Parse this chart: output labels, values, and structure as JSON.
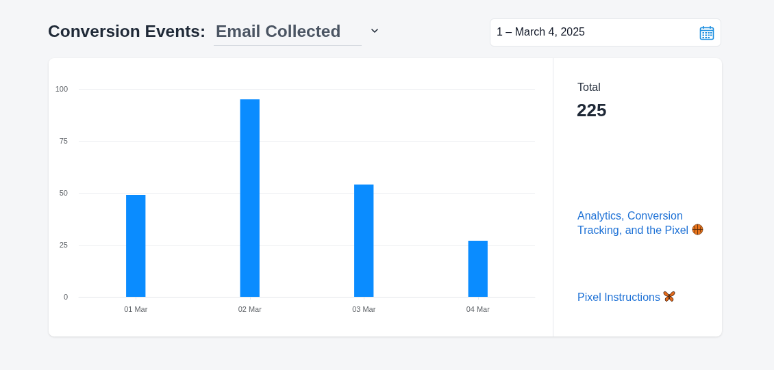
{
  "chart_data": {
    "type": "bar",
    "title": "Conversion Events:",
    "categories": [
      "01 Mar",
      "02 Mar",
      "03 Mar",
      "04 Mar"
    ],
    "values": [
      49,
      95,
      54,
      27
    ],
    "color": "#0a8cff",
    "ylim": [
      0,
      100
    ],
    "yticks": [
      0,
      25,
      50,
      75,
      100
    ],
    "grid": "y",
    "annotations": [
      "Email Collected",
      "1 – March 4, 2025",
      "Total",
      "225",
      "Analytics, Conversion Tracking, and the Pixel",
      "Pixel Instructions"
    ]
  }
}
